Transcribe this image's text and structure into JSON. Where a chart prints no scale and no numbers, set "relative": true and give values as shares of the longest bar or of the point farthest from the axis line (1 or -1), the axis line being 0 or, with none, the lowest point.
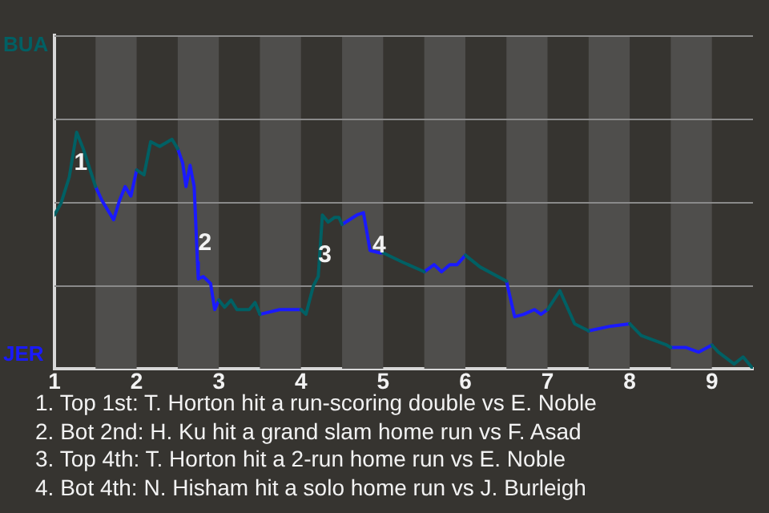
{
  "chart_data": {
    "type": "line",
    "relative": true,
    "x": [
      1,
      1.08,
      1.18,
      1.27,
      1.35,
      1.5,
      1.58,
      1.72,
      1.79,
      1.86,
      1.93,
      2,
      2.09,
      2.17,
      2.28,
      2.43,
      2.5,
      2.56,
      2.6,
      2.65,
      2.7,
      2.74,
      2.75,
      2.81,
      2.9,
      2.95,
      3,
      3.07,
      3.15,
      3.22,
      3.37,
      3.44,
      3.5,
      3.74,
      4,
      4.06,
      4.15,
      4.21,
      4.26,
      4.33,
      4.41,
      4.46,
      4.5,
      4.68,
      4.76,
      4.84,
      4.96,
      5,
      5.24,
      5.5,
      5.62,
      5.71,
      5.81,
      5.9,
      6,
      6.18,
      6.5,
      6.6,
      6.71,
      6.84,
      6.92,
      7,
      7.15,
      7.33,
      7.5,
      7.77,
      8,
      8.14,
      8.45,
      8.5,
      8.68,
      8.84,
      9,
      9.08,
      9.27,
      9.38,
      9.5
    ],
    "series": [
      {
        "color": "#006064",
        "values": [
          0.65,
          0.7,
          0.81,
          1,
          0.93,
          0.77,
          null,
          null,
          null,
          null,
          null,
          0.84,
          0.82,
          0.96,
          0.94,
          0.97,
          0.93,
          null,
          null,
          null,
          null,
          null,
          null,
          null,
          null,
          null,
          0.29,
          0.26,
          0.29,
          0.25,
          0.25,
          0.28,
          0.23,
          null,
          0.25,
          0.23,
          0.35,
          0.39,
          0.65,
          0.62,
          0.64,
          0.64,
          0.61,
          null,
          null,
          null,
          null,
          0.49,
          0.45,
          0.41,
          null,
          null,
          null,
          null,
          0.48,
          0.43,
          0.37,
          null,
          null,
          null,
          null,
          0.25,
          0.33,
          0.19,
          0.16,
          null,
          0.19,
          0.14,
          0.1,
          0.09,
          null,
          null,
          0.1,
          0.07,
          0.02,
          0.05,
          0
        ]
      },
      {
        "color": "#1a1aff",
        "values": [
          null,
          null,
          null,
          null,
          null,
          0.77,
          0.71,
          0.63,
          0.71,
          0.77,
          0.73,
          0.84,
          null,
          null,
          null,
          null,
          0.93,
          0.87,
          0.77,
          0.86,
          0.77,
          0.45,
          0.38,
          0.39,
          0.36,
          0.25,
          0.29,
          null,
          null,
          null,
          null,
          null,
          0.23,
          0.25,
          0.25,
          null,
          null,
          null,
          null,
          null,
          null,
          null,
          0.61,
          0.65,
          0.66,
          0.5,
          0.49,
          0.49,
          null,
          0.41,
          0.44,
          0.41,
          0.44,
          0.44,
          0.48,
          null,
          0.37,
          0.22,
          0.23,
          0.25,
          0.23,
          0.25,
          null,
          null,
          0.16,
          0.18,
          0.19,
          null,
          null,
          0.09,
          0.09,
          0.07,
          0.1,
          null,
          null,
          null,
          null
        ]
      }
    ],
    "xlim": [
      1,
      9.5
    ],
    "xticks": [
      1,
      2,
      3,
      4,
      5,
      6,
      7,
      8,
      9
    ],
    "ylim": [
      0,
      1.41
    ],
    "grid": "y",
    "legend": false,
    "marker": "none",
    "line_style": "solid",
    "bands": [
      {
        "axis": "x",
        "from": 1.5,
        "to": 2,
        "color": "#4f4e4c"
      },
      {
        "axis": "x",
        "from": 2.5,
        "to": 3,
        "color": "#4f4e4c"
      },
      {
        "axis": "x",
        "from": 3.5,
        "to": 4,
        "color": "#4f4e4c"
      },
      {
        "axis": "x",
        "from": 4.5,
        "to": 5,
        "color": "#4f4e4c"
      },
      {
        "axis": "x",
        "from": 5.5,
        "to": 6,
        "color": "#4f4e4c"
      },
      {
        "axis": "x",
        "from": 6.5,
        "to": 7,
        "color": "#4f4e4c"
      },
      {
        "axis": "x",
        "from": 7.5,
        "to": 8,
        "color": "#4f4e4c"
      },
      {
        "axis": "x",
        "from": 8.5,
        "to": 9,
        "color": "#4f4e4c"
      }
    ],
    "annotations": [
      "BUA",
      "JER",
      {
        "text": "1",
        "x": 1.32,
        "y": 0.87
      },
      {
        "text": "2",
        "x": 2.83,
        "y": 0.53
      },
      {
        "text": "3",
        "x": 4.29,
        "y": 0.48
      },
      {
        "text": "4",
        "x": 4.95,
        "y": 0.52
      },
      "1. Top 1st: T. Horton hit a run-scoring double vs E. Noble",
      "2. Bot 2nd: H. Ku hit a grand slam home run vs F. Asad",
      "3. Top 4th: T. Horton hit a 2-run home run vs E. Noble",
      "4. Bot 4th: N. Hisham hit a solo home run vs J. Burleigh"
    ]
  }
}
